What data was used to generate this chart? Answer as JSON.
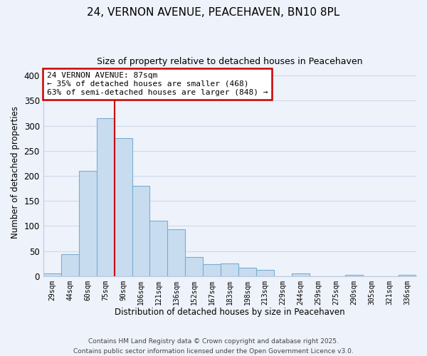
{
  "title_line1": "24, VERNON AVENUE, PEACEHAVEN, BN10 8PL",
  "title_line2": "Size of property relative to detached houses in Peacehaven",
  "xlabel": "Distribution of detached houses by size in Peacehaven",
  "ylabel": "Number of detached properties",
  "bar_labels": [
    "29sqm",
    "44sqm",
    "60sqm",
    "75sqm",
    "90sqm",
    "106sqm",
    "121sqm",
    "136sqm",
    "152sqm",
    "167sqm",
    "183sqm",
    "198sqm",
    "213sqm",
    "229sqm",
    "244sqm",
    "259sqm",
    "275sqm",
    "290sqm",
    "305sqm",
    "321sqm",
    "336sqm"
  ],
  "bar_values": [
    5,
    43,
    210,
    315,
    275,
    180,
    110,
    93,
    38,
    24,
    25,
    16,
    13,
    0,
    5,
    0,
    0,
    2,
    0,
    0,
    2
  ],
  "bar_color": "#c8dcf0",
  "bar_edge_color": "#7aaed0",
  "vline_index": 4,
  "vline_color": "#cc0000",
  "annotation_title": "24 VERNON AVENUE: 87sqm",
  "annotation_line2": "← 35% of detached houses are smaller (468)",
  "annotation_line3": "63% of semi-detached houses are larger (848) →",
  "annotation_box_color": "white",
  "annotation_box_edge": "#cc0000",
  "ylim": [
    0,
    415
  ],
  "yticks": [
    0,
    50,
    100,
    150,
    200,
    250,
    300,
    350,
    400
  ],
  "grid_color": "#d0d8e8",
  "footer_line1": "Contains HM Land Registry data © Crown copyright and database right 2025.",
  "footer_line2": "Contains public sector information licensed under the Open Government Licence v3.0.",
  "background_color": "#eef2fa"
}
